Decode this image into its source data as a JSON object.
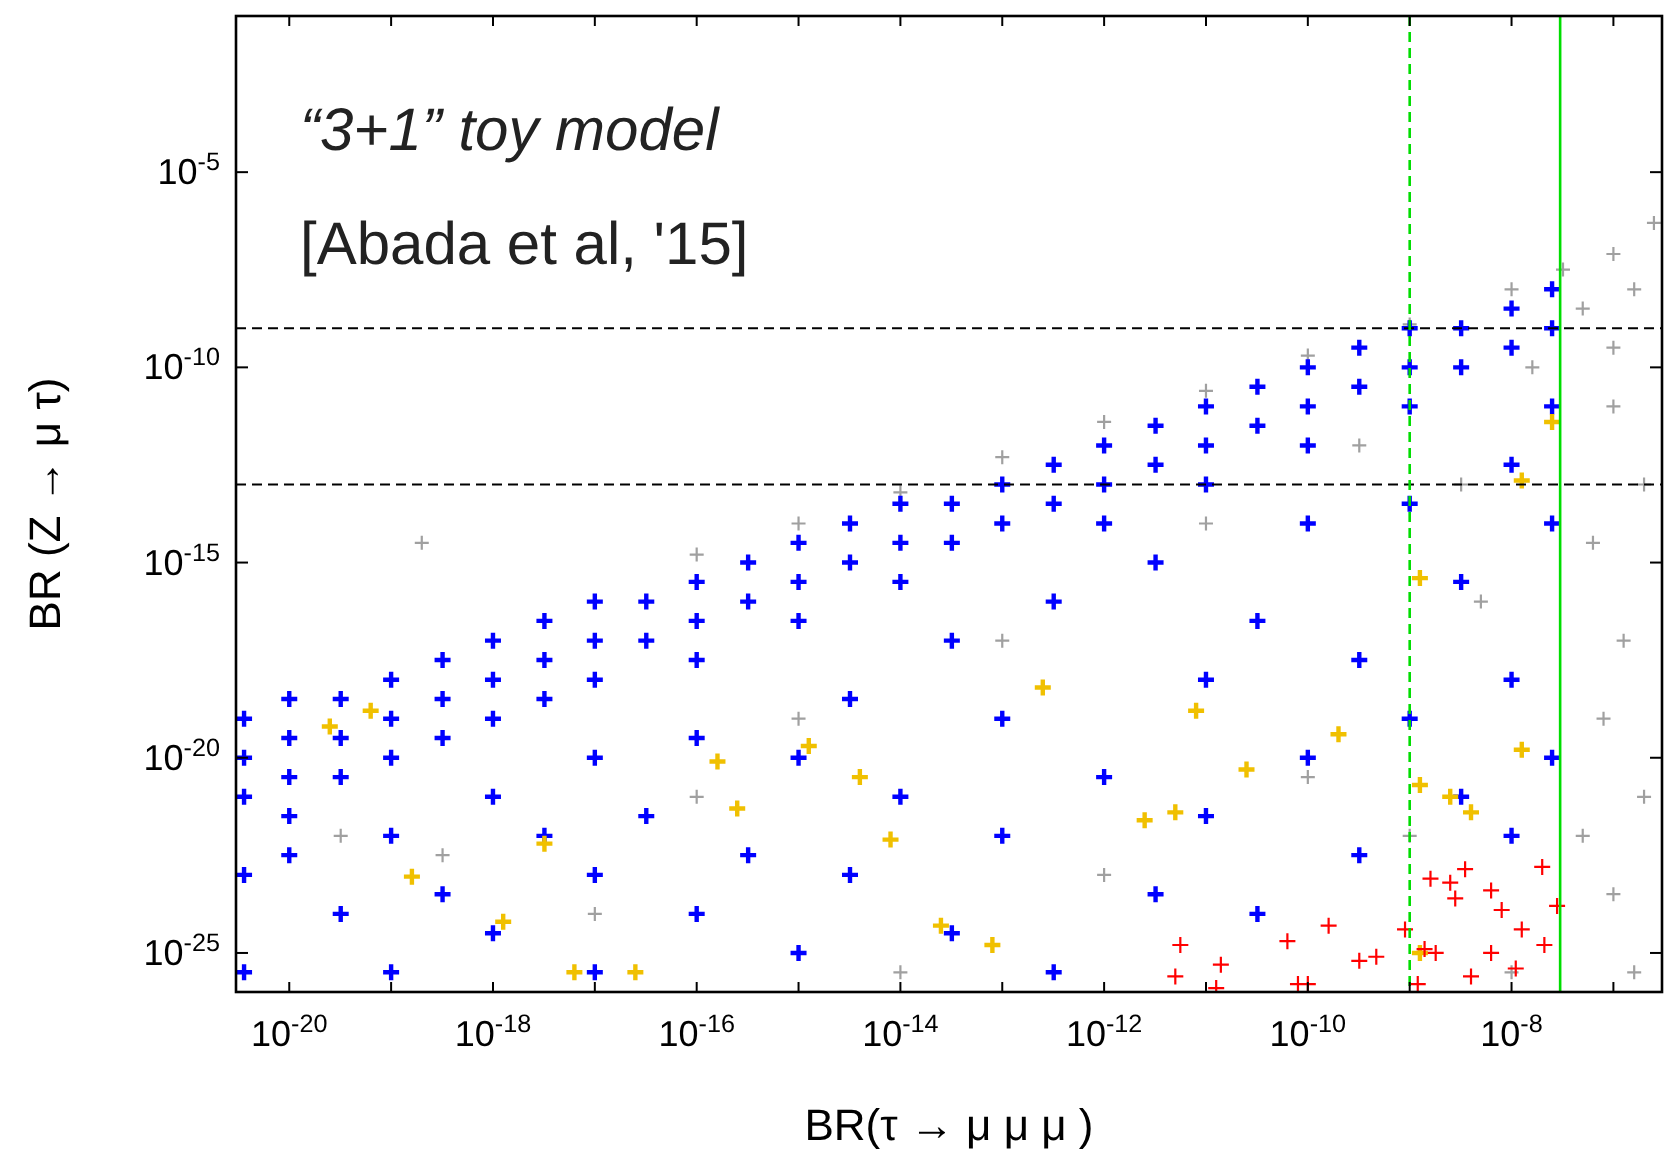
{
  "chart_data": {
    "type": "scatter",
    "log": "xy",
    "marker": "cross",
    "annotations": [
      "“3+1” toy model",
      "[Abada et al, '15]"
    ],
    "xlabel": "BR(τ → μ μ μ )",
    "ylabel": "BR (Z → μ τ)",
    "xlim": [
      3e-21,
      3e-07
    ],
    "ylim": [
      1e-26,
      0.1
    ],
    "xticks": [
      {
        "value": 1e-20,
        "label": "10$^{-20}$"
      },
      {
        "value": 1e-19,
        "label": null
      },
      {
        "value": 1e-18,
        "label": "10$^{-18}$"
      },
      {
        "value": 1e-17,
        "label": null
      },
      {
        "value": 1e-16,
        "label": "10$^{-16}$"
      },
      {
        "value": 1e-15,
        "label": null
      },
      {
        "value": 1e-14,
        "label": "10$^{-14}$"
      },
      {
        "value": 1e-13,
        "label": null
      },
      {
        "value": 1e-12,
        "label": "10$^{-12}$"
      },
      {
        "value": 1e-11,
        "label": null
      },
      {
        "value": 1e-10,
        "label": "10$^{-10}$"
      },
      {
        "value": 1e-09,
        "label": null
      },
      {
        "value": 1e-08,
        "label": "10$^{-8}$"
      },
      {
        "value": 1e-07,
        "label": null
      }
    ],
    "yticks": [
      {
        "value": 1e-05,
        "label": "10$^{-5}$"
      },
      {
        "value": 1e-10,
        "label": "10$^{-10}$"
      },
      {
        "value": 1e-15,
        "label": "10$^{-15}$"
      },
      {
        "value": 1e-20,
        "label": "10$^{-20}$"
      },
      {
        "value": 1e-25,
        "label": "10$^{-25}$"
      }
    ],
    "ref_lines": [
      {
        "axis": "y",
        "value": 1e-09,
        "color": "#000000",
        "line_style": "dashed"
      },
      {
        "axis": "y",
        "value": 1e-13,
        "color": "#000000",
        "line_style": "dashed"
      },
      {
        "axis": "x",
        "value": 1e-09,
        "color": "#00dd00",
        "line_style": "dashed"
      },
      {
        "axis": "x",
        "value": 3e-08,
        "color": "#00dd00",
        "line_style": "solid"
      }
    ],
    "series": [
      {
        "color": "#a0a0a0",
        "x": [
          1e-16,
          1e-15,
          1e-14,
          1e-13,
          1e-12,
          1e-11,
          1e-10,
          1e-09,
          1e-08,
          3.2e-08,
          1e-07,
          2.5e-07,
          5e-08,
          1e-07,
          1.6e-07,
          1e-07,
          2e-07,
          6.3e-08,
          1.26e-07,
          8e-08,
          2e-07,
          1e-07,
          1.6e-07,
          5e-08,
          2e-19,
          3.2e-20,
          3.2e-19,
          1e-17,
          1e-16,
          1e-15,
          1e-14,
          1e-13,
          1e-12,
          1e-11,
          1e-10,
          3.2e-10,
          1e-09,
          3.2e-09,
          1e-08,
          5e-09,
          1.6e-08
        ],
        "values": [
          1.6e-15,
          1e-14,
          6.3e-14,
          5e-13,
          4e-12,
          2.5e-11,
          2e-10,
          1.26e-09,
          1e-08,
          3.2e-08,
          8e-08,
          5e-07,
          3.2e-09,
          3.2e-10,
          1e-08,
          1e-11,
          1e-13,
          3.2e-15,
          1e-17,
          1e-19,
          1e-21,
          3.2e-24,
          3.2e-26,
          1e-22,
          3.2e-15,
          1e-22,
          3.2e-23,
          1e-24,
          1e-21,
          1e-19,
          3.2e-26,
          1e-17,
          1e-23,
          1e-14,
          3.2e-21,
          1e-12,
          1e-22,
          1e-13,
          3.2e-26,
          1e-16,
          1e-10
        ]
      },
      {
        "color": "#0000ff",
        "x": [
          3.6e-21,
          3.6e-21,
          3.6e-21,
          1e-20,
          1e-20,
          1e-20,
          1e-20,
          3.2e-20,
          3.2e-20,
          3.2e-20,
          1e-19,
          1e-19,
          1e-19,
          3.2e-19,
          3.2e-19,
          3.2e-19,
          1e-18,
          1e-18,
          1e-18,
          3.2e-18,
          3.2e-18,
          3.2e-18,
          1e-17,
          1e-17,
          1e-17,
          3.2e-17,
          3.2e-17,
          1e-16,
          1e-16,
          1e-16,
          3.2e-16,
          3.2e-16,
          1e-15,
          1e-15,
          1e-15,
          3.2e-15,
          3.2e-15,
          1e-14,
          1e-14,
          1e-14,
          3.2e-14,
          3.2e-14,
          1e-13,
          1e-13,
          3.2e-13,
          3.2e-13,
          1e-12,
          1e-12,
          1e-12,
          3.2e-12,
          3.2e-12,
          1e-11,
          1e-11,
          1e-11,
          3.2e-11,
          3.2e-11,
          1e-10,
          1e-10,
          1e-10,
          3.2e-10,
          3.2e-10,
          1e-09,
          1e-09,
          1e-09,
          3.2e-09,
          3.2e-09,
          1e-08,
          1e-08,
          2.5e-08,
          2.5e-08,
          3.6e-21,
          3.6e-21,
          1e-20,
          3.2e-20,
          1e-19,
          1e-19,
          3.2e-19,
          1e-18,
          1e-18,
          3.2e-18,
          1e-17,
          1e-17,
          1e-17,
          3.2e-17,
          1e-16,
          1e-16,
          3.2e-16,
          1e-15,
          1e-15,
          3.2e-15,
          3.2e-15,
          1e-14,
          3.2e-14,
          3.2e-14,
          1e-13,
          1e-13,
          3.2e-13,
          3.2e-13,
          1e-12,
          3.2e-12,
          3.2e-12,
          1e-11,
          1e-11,
          3.2e-11,
          3.2e-11,
          1e-10,
          1e-10,
          3.2e-10,
          3.2e-10,
          1e-09,
          1e-09,
          3.2e-09,
          3.2e-09,
          1e-08,
          1e-08,
          1e-08,
          2.5e-08,
          2.5e-08,
          2.5e-08
        ],
        "values": [
          1e-19,
          1e-20,
          1e-21,
          3.2e-19,
          3.2e-20,
          3.2e-21,
          3.2e-22,
          3.2e-19,
          3.2e-20,
          3.2e-21,
          1e-18,
          1e-19,
          1e-20,
          3.2e-18,
          3.2e-19,
          3.2e-20,
          1e-17,
          1e-18,
          1e-19,
          3.2e-17,
          3.2e-18,
          3.2e-19,
          1e-16,
          1e-17,
          1e-18,
          1e-16,
          1e-17,
          3.2e-16,
          3.2e-17,
          3.2e-18,
          1e-15,
          1e-16,
          3.2e-15,
          3.2e-16,
          3.2e-17,
          1e-14,
          1e-15,
          3.2e-14,
          3.2e-15,
          3.2e-16,
          3.2e-14,
          3.2e-15,
          1e-13,
          1e-14,
          3.2e-13,
          3.2e-14,
          1e-12,
          1e-13,
          1e-14,
          3.2e-12,
          3.2e-13,
          1e-11,
          1e-12,
          1e-13,
          3.2e-11,
          3.2e-12,
          1e-10,
          1e-11,
          1e-12,
          3.2e-10,
          3.2e-11,
          1e-09,
          1e-10,
          1e-11,
          1e-09,
          1e-10,
          3.2e-09,
          3.2e-10,
          1e-08,
          1e-09,
          1e-23,
          3.2e-26,
          3.2e-23,
          1e-24,
          1e-22,
          3.2e-26,
          3.2e-24,
          1e-21,
          3.2e-25,
          1e-22,
          1e-20,
          1e-23,
          3.2e-26,
          3.2e-22,
          3.2e-20,
          1e-24,
          3.2e-23,
          1e-20,
          1e-25,
          3.2e-19,
          1e-23,
          1e-21,
          1e-17,
          3.2e-25,
          1e-19,
          1e-22,
          1e-16,
          3.2e-26,
          3.2e-21,
          1e-15,
          3.2e-24,
          1e-18,
          3.2e-22,
          3.2e-17,
          1e-24,
          1e-14,
          1e-20,
          3.2e-18,
          3.2e-23,
          3.2e-14,
          1e-19,
          3.2e-16,
          1e-21,
          3.2e-13,
          1e-18,
          1e-22,
          1e-14,
          1e-20,
          1e-11
        ]
      },
      {
        "color": "#f0c000",
        "x": [
          2.5e-20,
          6.3e-20,
          1.6e-19,
          1.26e-18,
          3.2e-18,
          6.3e-18,
          2.5e-17,
          1.6e-16,
          2.5e-16,
          1.26e-15,
          4e-15,
          8e-15,
          2.5e-14,
          2.5e-13,
          8e-14,
          2.5e-12,
          5e-12,
          8e-12,
          2.5e-11,
          2e-10,
          1.26e-09,
          1.26e-09,
          1.26e-09,
          2.5e-09,
          4e-09,
          1.26e-08,
          2.5e-08,
          1.26e-08
        ],
        "values": [
          6.3e-20,
          1.6e-19,
          9e-24,
          6.3e-25,
          6.3e-23,
          3.2e-26,
          3.2e-26,
          8e-21,
          5e-22,
          2e-20,
          3.2e-21,
          8e-23,
          5e-25,
          6.3e-19,
          1.6e-25,
          2.5e-22,
          4e-22,
          1.6e-19,
          5e-21,
          4e-20,
          4e-16,
          1e-25,
          2e-21,
          1e-21,
          4e-22,
          1.6e-20,
          4e-12,
          1.26e-13
        ]
      },
      {
        "color": "#ff0000",
        "x": [
          2e-08,
          2.5e-09,
          2.8e-09,
          6.3e-09,
          8e-09,
          2.8e-08,
          1.6e-10,
          6.3e-11,
          9e-10,
          3.2e-10,
          4.7e-10,
          1.4e-09,
          1.8e-09,
          6.3e-09,
          1.1e-08,
          2.1e-08,
          1.26e-08,
          5.6e-12,
          5e-12,
          1.4e-11,
          1.26e-11,
          8e-11,
          1e-10,
          1.2e-09,
          4e-09,
          3.5e-09,
          1.6e-09
        ],
        "values": [
          1.6e-23,
          6.3e-24,
          2.5e-24,
          4e-24,
          1.26e-24,
          1.6e-24,
          5e-25,
          2e-25,
          4e-25,
          6.3e-26,
          8e-26,
          1.26e-25,
          1e-25,
          1e-25,
          4e-26,
          1.6e-25,
          4e-25,
          1.6e-25,
          2.5e-26,
          5e-26,
          1.26e-26,
          1.6e-26,
          1.6e-26,
          1.6e-26,
          2.5e-26,
          1.4e-23,
          8e-24
        ]
      }
    ]
  }
}
